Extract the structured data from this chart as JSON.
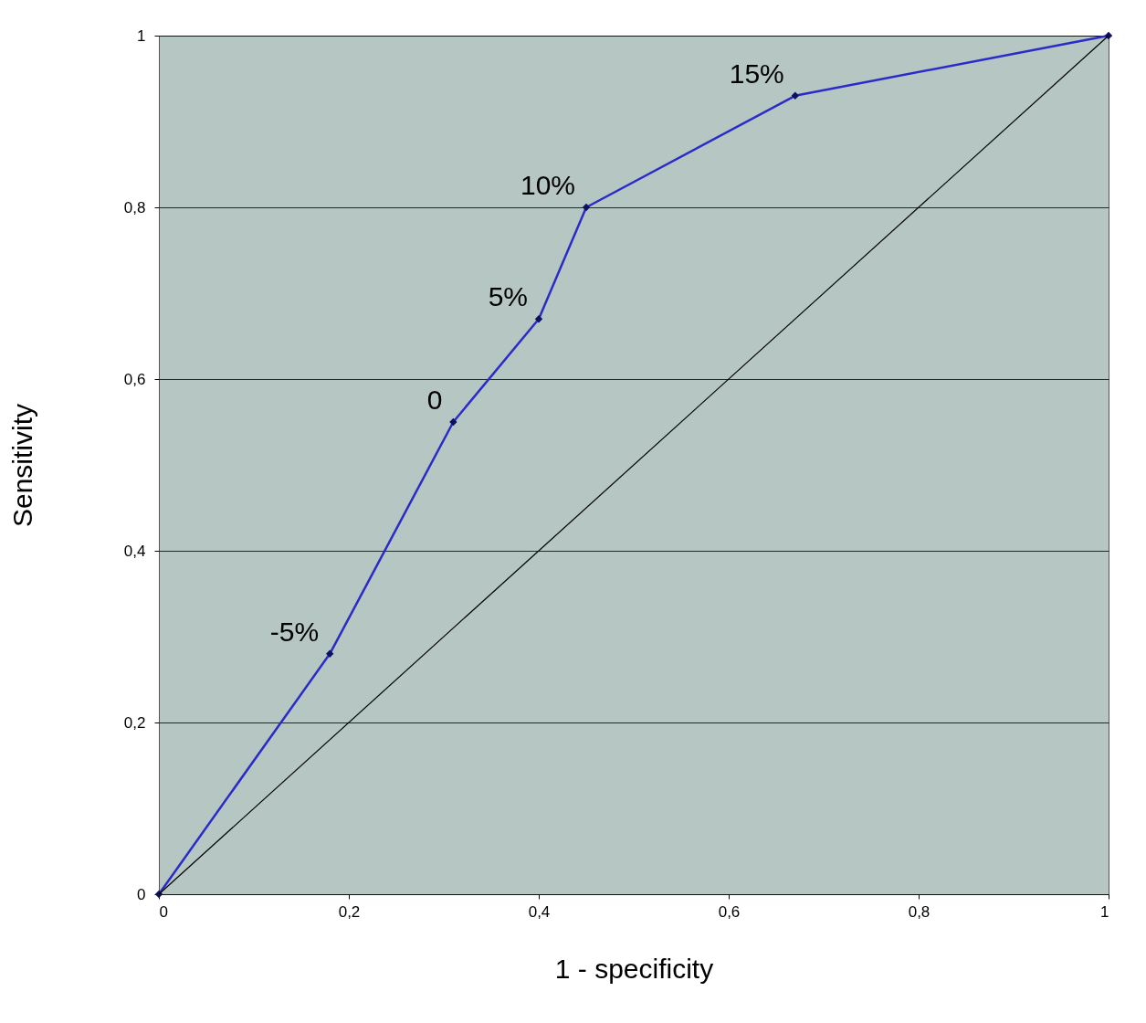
{
  "chart_data": {
    "type": "line",
    "xlabel": "1 - specificity",
    "ylabel": "Sensitivity",
    "xlim": [
      0,
      1
    ],
    "ylim": [
      0,
      1
    ],
    "xticks": [
      0,
      {
        "value": 0.2,
        "label": "0,2"
      },
      {
        "value": 0.4,
        "label": "0,4"
      },
      {
        "value": 0.6,
        "label": "0,6"
      },
      {
        "value": 0.8,
        "label": "0,8"
      },
      1
    ],
    "yticks": [
      0,
      {
        "value": 0.2,
        "label": "0,2"
      },
      {
        "value": 0.4,
        "label": "0,4"
      },
      {
        "value": 0.6,
        "label": "0,6"
      },
      {
        "value": 0.8,
        "label": "0,8"
      },
      1
    ],
    "grid": "y",
    "marker": "diamond",
    "line_style": "solid",
    "series": [
      {
        "color": "#2b2bc8",
        "x": [
          0,
          0.18,
          0.31,
          0.4,
          0.45,
          0.67,
          1
        ],
        "values": [
          0,
          0.28,
          0.55,
          0.67,
          0.8,
          0.93,
          1
        ]
      },
      {
        "color": "#000000",
        "x": [
          0,
          1
        ],
        "values": [
          0,
          1
        ],
        "marker": "none"
      }
    ],
    "annotations": [
      {
        "text": "-5%",
        "x": 0.18,
        "y": 0.28
      },
      {
        "text": "0",
        "x": 0.31,
        "y": 0.55
      },
      {
        "text": "5%",
        "x": 0.4,
        "y": 0.67
      },
      {
        "text": "10%",
        "x": 0.45,
        "y": 0.8
      },
      {
        "text": "15%",
        "x": 0.67,
        "y": 0.93
      }
    ]
  }
}
